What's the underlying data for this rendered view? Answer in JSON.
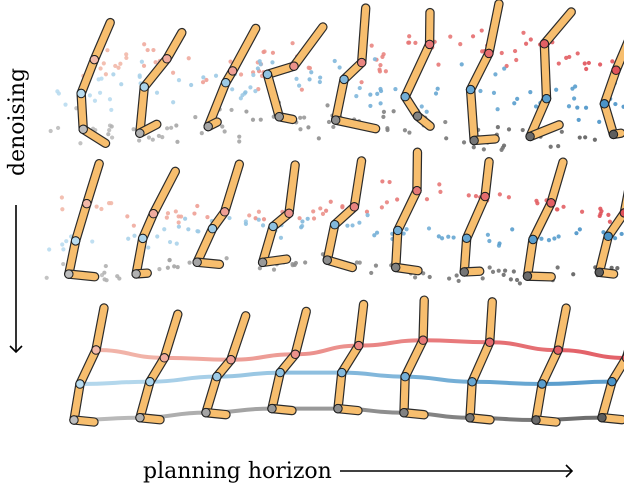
{
  "labels": {
    "vertical_axis": "denoising",
    "horizontal_axis": "planning horizon"
  },
  "colors": {
    "limb_fill": "#F7BE6E",
    "limb_stroke": "#2b2b2b",
    "joint_top": "#E0525A",
    "joint_mid": "#4A94C8",
    "joint_low": "#5e5e5e",
    "top_light": "#F2B8A8",
    "mid_light": "#B9DCEF",
    "low_light": "#BDBDBD"
  },
  "rows": [
    {
      "name": "noisy-row",
      "noise": "high"
    },
    {
      "name": "partially-denoised-row",
      "noise": "medium"
    },
    {
      "name": "clean-row",
      "noise": "none"
    }
  ]
}
